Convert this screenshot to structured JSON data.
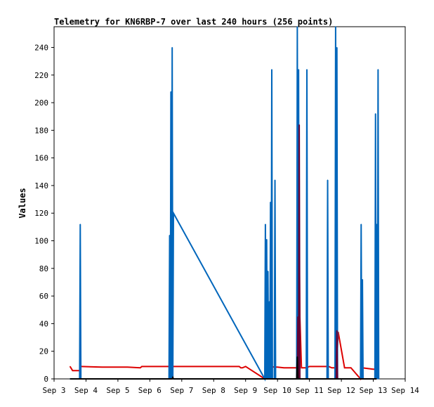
{
  "chart_data": {
    "type": "line",
    "title": "Telemetry for KN6RBP-7 over last 240 hours (256 points)",
    "xlabel": "",
    "ylabel": "Values",
    "ylim": [
      0,
      255
    ],
    "xlim": [
      3,
      14
    ],
    "x_ticks": [
      "Sep 3",
      "Sep 4",
      "Sep 5",
      "Sep 6",
      "Sep 7",
      "Sep 8",
      "Sep 9",
      "Sep 10",
      "Sep 11",
      "Sep 12",
      "Sep 13",
      "Sep 14"
    ],
    "y_ticks": [
      0,
      20,
      40,
      60,
      80,
      100,
      120,
      140,
      160,
      180,
      200,
      220,
      240
    ],
    "grid": false,
    "colors": {
      "red": "#dd0000",
      "blue": "#0066bb",
      "dark": "#660033",
      "black": "#000000"
    },
    "series": [
      {
        "color": "red",
        "x": [
          3.5,
          3.58,
          3.8,
          3.82,
          3.85,
          4.5,
          5.3,
          5.7,
          5.75,
          6.7,
          6.75,
          7.5,
          8.3,
          8.8,
          8.85,
          8.9,
          9.0,
          9.6,
          9.7,
          9.8,
          9.9,
          10.0,
          10.2,
          10.6,
          10.65,
          10.7,
          10.75,
          10.9,
          11.0,
          11.3,
          11.6,
          11.7,
          11.85,
          11.9,
          12.1,
          12.3,
          12.6,
          12.65,
          13.0,
          13.05,
          13.1
        ],
        "y": [
          9,
          6,
          6,
          9,
          9,
          8.5,
          8.5,
          8,
          9,
          9,
          9,
          9,
          9,
          9,
          8,
          8,
          9,
          0,
          9,
          9,
          8.5,
          8.5,
          8,
          8,
          184,
          45,
          8,
          8,
          9,
          9,
          9,
          8,
          8,
          34,
          8,
          8,
          0,
          8,
          7,
          7,
          9
        ]
      },
      {
        "color": "blue",
        "x": [
          3.5,
          3.8,
          3.82,
          3.84,
          6.6,
          6.62,
          6.64,
          6.66,
          6.68,
          6.7,
          6.72,
          6.74,
          9.6,
          9.62,
          9.64,
          9.66,
          9.68,
          9.7,
          9.72,
          9.74,
          9.76,
          9.78,
          9.8,
          9.82,
          9.84,
          9.9,
          9.92,
          9.94,
          10.6,
          10.62,
          10.64,
          10.66,
          10.68,
          10.7,
          10.72,
          10.9,
          10.92,
          10.94,
          11.55,
          11.57,
          11.59,
          11.8,
          11.82,
          11.84,
          11.86,
          11.88,
          12.6,
          12.62,
          12.64,
          12.66,
          12.68,
          13.05,
          13.07,
          13.09,
          13.11,
          13.13,
          13.15,
          13.17
        ],
        "y": [
          0,
          0,
          112,
          0,
          0,
          104,
          0,
          208,
          0,
          240,
          0,
          120,
          0,
          112,
          0,
          101,
          0,
          78,
          0,
          56,
          0,
          128,
          0,
          224,
          0,
          0,
          144,
          0,
          0,
          255,
          0,
          224,
          0,
          0,
          0,
          0,
          224,
          0,
          0,
          144,
          0,
          0,
          255,
          0,
          240,
          0,
          0,
          112,
          0,
          72,
          0,
          0,
          192,
          0,
          112,
          0,
          224,
          0
        ]
      },
      {
        "color": "dark",
        "x": [
          10.62,
          10.64,
          10.66,
          10.68,
          10.7,
          10.72,
          11.84,
          11.86,
          11.88,
          11.9
        ],
        "y": [
          0,
          45,
          0,
          184,
          0,
          0,
          0,
          35,
          0,
          0
        ]
      },
      {
        "color": "black",
        "x": [
          3.5,
          6.7,
          6.72,
          6.74,
          6.76,
          10.6,
          10.62,
          10.64,
          10.66,
          13.1
        ],
        "y": [
          0,
          0,
          1,
          0,
          0,
          0,
          16,
          0,
          0,
          0
        ]
      }
    ]
  }
}
